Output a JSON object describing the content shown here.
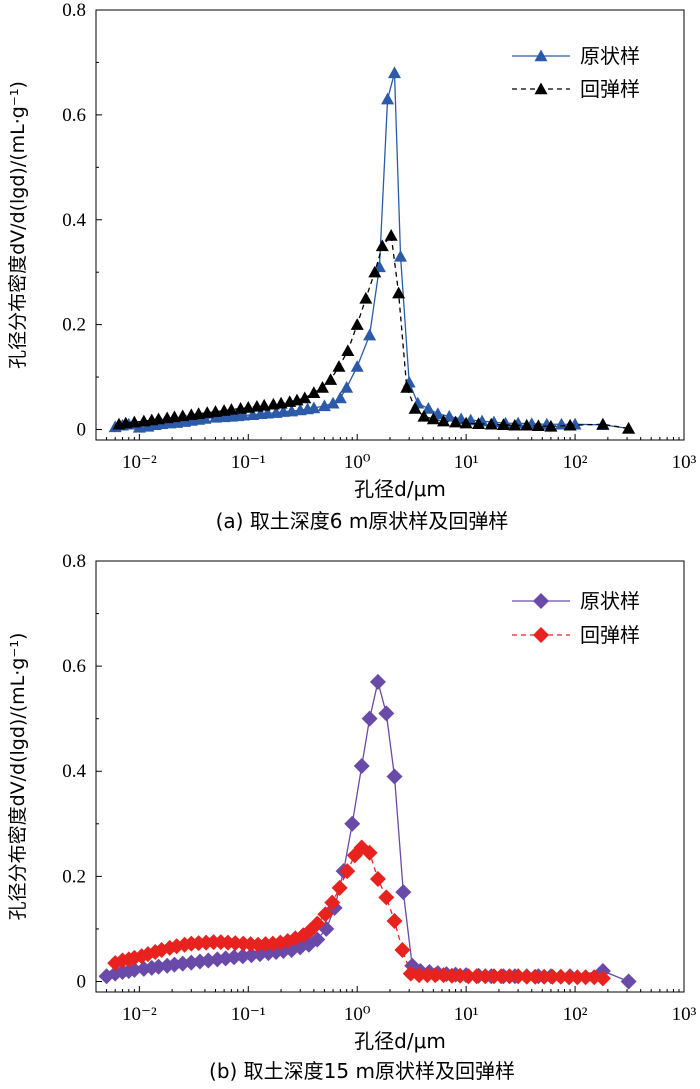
{
  "chart_data": [
    {
      "id": "a",
      "type": "line",
      "caption": "(a) 取土深度6 m原状样及回弹样",
      "xlabel": "孔径d/μm",
      "ylabel": "孔径分布密度dV/d(lgd)/(mL·g⁻¹)",
      "xscale": "log",
      "xlim": [
        0.004,
        1000
      ],
      "ylim": [
        -0.02,
        0.8
      ],
      "x_ticks": [
        0.01,
        0.1,
        1,
        10,
        100,
        1000
      ],
      "x_tick_labels": [
        "10⁻²",
        "10⁻¹",
        "10⁰",
        "10¹",
        "10²",
        "10³"
      ],
      "y_ticks": [
        0,
        0.2,
        0.4,
        0.6,
        0.8
      ],
      "y_tick_labels": [
        "0",
        "0.2",
        "0.4",
        "0.6",
        "0.8"
      ],
      "legend_position": "top-right",
      "series": [
        {
          "name": "原状样",
          "color": "#2b5ba8",
          "line_style": "solid",
          "marker": "triangle",
          "x": [
            0.006,
            0.007,
            0.008,
            0.009,
            0.01,
            0.012,
            0.014,
            0.016,
            0.019,
            0.022,
            0.026,
            0.03,
            0.035,
            0.04,
            0.05,
            0.06,
            0.07,
            0.08,
            0.09,
            0.11,
            0.13,
            0.15,
            0.18,
            0.21,
            0.25,
            0.3,
            0.35,
            0.4,
            0.5,
            0.6,
            0.7,
            0.8,
            1.0,
            1.3,
            1.6,
            1.9,
            2.2,
            2.5,
            3.0,
            3.6,
            4.5,
            5.5,
            7.0,
            9.0,
            11,
            14,
            18,
            23,
            30,
            40,
            55,
            75,
            100,
            180,
            310
          ],
          "y": [
            0.005,
            0.008,
            0.01,
            0.012,
            0.004,
            0.006,
            0.009,
            0.011,
            0.012,
            0.013,
            0.015,
            0.017,
            0.019,
            0.021,
            0.023,
            0.024,
            0.025,
            0.026,
            0.027,
            0.028,
            0.03,
            0.031,
            0.032,
            0.034,
            0.035,
            0.037,
            0.039,
            0.041,
            0.045,
            0.05,
            0.06,
            0.08,
            0.12,
            0.18,
            0.31,
            0.63,
            0.68,
            0.33,
            0.09,
            0.05,
            0.04,
            0.03,
            0.025,
            0.02,
            0.018,
            0.016,
            0.014,
            0.012,
            0.012,
            0.011,
            0.01,
            0.01,
            0.01,
            0.009,
            0.002
          ]
        },
        {
          "name": "回弹样",
          "color": "#000000",
          "line_style": "dashed",
          "marker": "triangle",
          "x": [
            0.0065,
            0.0075,
            0.009,
            0.011,
            0.013,
            0.015,
            0.018,
            0.021,
            0.025,
            0.03,
            0.035,
            0.042,
            0.05,
            0.06,
            0.07,
            0.085,
            0.1,
            0.12,
            0.14,
            0.17,
            0.2,
            0.24,
            0.28,
            0.33,
            0.4,
            0.48,
            0.57,
            0.68,
            0.82,
            1.0,
            1.2,
            1.45,
            1.7,
            2.05,
            2.4,
            2.85,
            3.4,
            4.1,
            5.0,
            6.2,
            8.0,
            10,
            13,
            17,
            22,
            28,
            36,
            46,
            60,
            90,
            180,
            310
          ],
          "y": [
            0.01,
            0.012,
            0.014,
            0.016,
            0.018,
            0.02,
            0.022,
            0.024,
            0.026,
            0.028,
            0.03,
            0.032,
            0.034,
            0.036,
            0.038,
            0.04,
            0.042,
            0.044,
            0.046,
            0.048,
            0.05,
            0.053,
            0.056,
            0.06,
            0.07,
            0.08,
            0.095,
            0.12,
            0.15,
            0.2,
            0.25,
            0.3,
            0.35,
            0.37,
            0.26,
            0.08,
            0.04,
            0.025,
            0.02,
            0.016,
            0.014,
            0.012,
            0.011,
            0.01,
            0.009,
            0.008,
            0.008,
            0.007,
            0.006,
            0.008,
            0.01,
            0.002
          ]
        }
      ]
    },
    {
      "id": "b",
      "type": "line",
      "caption": "(b) 取土深度15 m原状样及回弹样",
      "xlabel": "孔径d/μm",
      "ylabel": "孔径分布密度dV/d(lgd)/(mL·g⁻¹)",
      "xscale": "log",
      "xlim": [
        0.004,
        1000
      ],
      "ylim": [
        -0.02,
        0.8
      ],
      "x_ticks": [
        0.01,
        0.1,
        1,
        10,
        100,
        1000
      ],
      "x_tick_labels": [
        "10⁻²",
        "10⁻¹",
        "10⁰",
        "10¹",
        "10²",
        "10³"
      ],
      "y_ticks": [
        0,
        0.2,
        0.4,
        0.6,
        0.8
      ],
      "y_tick_labels": [
        "0",
        "0.2",
        "0.4",
        "0.6",
        "0.8"
      ],
      "legend_position": "top-right",
      "series": [
        {
          "name": "原状样",
          "color": "#6a4aa8",
          "line_style": "solid",
          "marker": "diamond",
          "x": [
            0.005,
            0.006,
            0.007,
            0.008,
            0.009,
            0.011,
            0.013,
            0.015,
            0.018,
            0.021,
            0.025,
            0.03,
            0.036,
            0.043,
            0.052,
            0.062,
            0.074,
            0.089,
            0.107,
            0.128,
            0.153,
            0.18,
            0.21,
            0.25,
            0.3,
            0.36,
            0.43,
            0.52,
            0.62,
            0.75,
            0.9,
            1.1,
            1.3,
            1.55,
            1.85,
            2.2,
            2.65,
            3.2,
            3.8,
            4.6,
            5.5,
            6.6,
            8.0,
            10,
            13,
            17,
            22,
            28,
            36,
            46,
            60,
            90,
            180,
            310
          ],
          "y": [
            0.01,
            0.015,
            0.018,
            0.02,
            0.022,
            0.024,
            0.026,
            0.028,
            0.03,
            0.032,
            0.034,
            0.036,
            0.038,
            0.04,
            0.042,
            0.044,
            0.046,
            0.048,
            0.05,
            0.052,
            0.054,
            0.056,
            0.058,
            0.06,
            0.065,
            0.07,
            0.08,
            0.1,
            0.14,
            0.21,
            0.3,
            0.41,
            0.5,
            0.57,
            0.51,
            0.39,
            0.17,
            0.03,
            0.02,
            0.018,
            0.016,
            0.014,
            0.013,
            0.012,
            0.011,
            0.01,
            0.01,
            0.01,
            0.01,
            0.01,
            0.01,
            0.01,
            0.02,
            0.0
          ]
        },
        {
          "name": "回弹样",
          "color": "#e8231f",
          "line_style": "dashed",
          "marker": "diamond",
          "x": [
            0.006,
            0.007,
            0.008,
            0.009,
            0.0105,
            0.012,
            0.014,
            0.016,
            0.019,
            0.022,
            0.026,
            0.03,
            0.035,
            0.041,
            0.048,
            0.056,
            0.065,
            0.076,
            0.09,
            0.105,
            0.123,
            0.144,
            0.168,
            0.197,
            0.23,
            0.27,
            0.32,
            0.37,
            0.43,
            0.51,
            0.59,
            0.69,
            0.81,
            0.95,
            1.1,
            1.3,
            1.55,
            1.85,
            2.2,
            2.6,
            3.1,
            3.7,
            4.4,
            5.2,
            6.2,
            7.4,
            8.8,
            10.5,
            12.5,
            15,
            18,
            21,
            25,
            30,
            36,
            43,
            52,
            62,
            74,
            88,
            105,
            125,
            150,
            180
          ],
          "y": [
            0.035,
            0.04,
            0.042,
            0.045,
            0.048,
            0.052,
            0.056,
            0.06,
            0.064,
            0.067,
            0.07,
            0.072,
            0.073,
            0.074,
            0.075,
            0.075,
            0.074,
            0.073,
            0.072,
            0.071,
            0.07,
            0.071,
            0.072,
            0.074,
            0.077,
            0.082,
            0.088,
            0.097,
            0.11,
            0.128,
            0.15,
            0.178,
            0.21,
            0.24,
            0.255,
            0.245,
            0.195,
            0.16,
            0.115,
            0.06,
            0.015,
            0.012,
            0.012,
            0.012,
            0.012,
            0.011,
            0.011,
            0.01,
            0.01,
            0.01,
            0.01,
            0.01,
            0.01,
            0.01,
            0.009,
            0.009,
            0.009,
            0.009,
            0.009,
            0.008,
            0.008,
            0.008,
            0.008,
            0.006
          ]
        }
      ]
    }
  ]
}
